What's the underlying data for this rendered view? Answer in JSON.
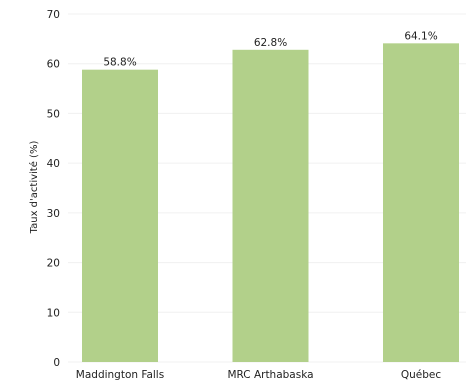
{
  "chart_data": {
    "type": "bar",
    "title": "",
    "xlabel": "",
    "ylabel": "Taux d'activité (%)",
    "categories": [
      "Maddington Falls",
      "MRC Arthabaska",
      "Québec"
    ],
    "values": [
      58.8,
      62.8,
      64.1
    ],
    "data_labels": [
      "58.8%",
      "62.8%",
      "64.1%"
    ],
    "ylim": [
      0,
      70
    ],
    "yticks": [
      0,
      10,
      20,
      30,
      40,
      50,
      60,
      70
    ],
    "grid": true,
    "legend": "none",
    "colors": {
      "bar": "#b2d08a"
    }
  }
}
